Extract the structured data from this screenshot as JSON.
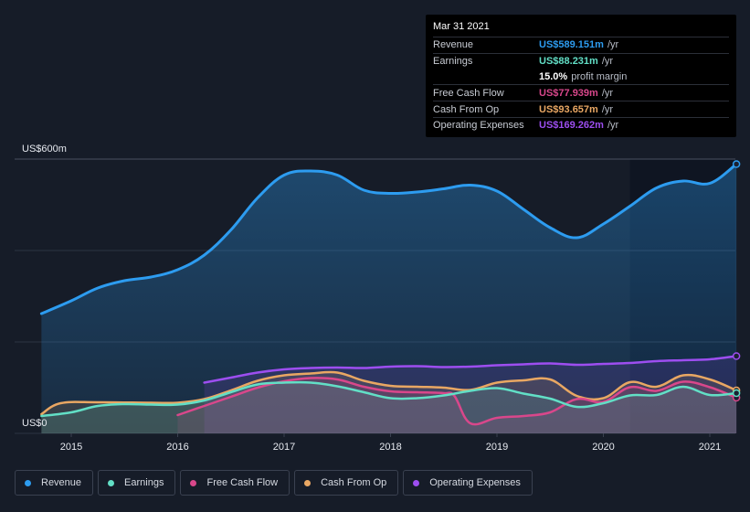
{
  "tooltip": {
    "date": "Mar 31 2021",
    "rows": [
      {
        "label": "Revenue",
        "value": "US$589.151m",
        "unit": "/yr",
        "color": "#2d9cf0"
      },
      {
        "label": "Earnings",
        "value": "US$88.231m",
        "unit": "/yr",
        "color": "#62dfc6"
      },
      {
        "label": "",
        "value": "15.0%",
        "unit": "profit margin",
        "color": "#ffffff"
      },
      {
        "label": "Free Cash Flow",
        "value": "US$77.939m",
        "unit": "/yr",
        "color": "#d9478b"
      },
      {
        "label": "Cash From Op",
        "value": "US$93.657m",
        "unit": "/yr",
        "color": "#e9a763"
      },
      {
        "label": "Operating Expenses",
        "value": "US$169.262m",
        "unit": "/yr",
        "color": "#9d4ef0"
      }
    ]
  },
  "legend": [
    {
      "label": "Revenue",
      "color": "#2d9cf0"
    },
    {
      "label": "Earnings",
      "color": "#62dfc6"
    },
    {
      "label": "Free Cash Flow",
      "color": "#d9478b"
    },
    {
      "label": "Cash From Op",
      "color": "#e9a763"
    },
    {
      "label": "Operating Expenses",
      "color": "#9d4ef0"
    }
  ],
  "chart_data": {
    "type": "area",
    "y_top_label": "US$600m",
    "y_bottom_label": "US$0",
    "ylim": [
      0,
      600
    ],
    "xlim": [
      2014.72,
      2021.25
    ],
    "x_ticks": [
      "2015",
      "2016",
      "2017",
      "2018",
      "2019",
      "2020",
      "2021"
    ],
    "x_tick_values": [
      2015,
      2016,
      2017,
      2018,
      2019,
      2020,
      2021
    ],
    "highlight_from": 2020.25,
    "grid": true,
    "series": [
      {
        "name": "Revenue",
        "color": "#2d9cf0",
        "points": [
          [
            2014.72,
            262
          ],
          [
            2015.0,
            290
          ],
          [
            2015.25,
            318
          ],
          [
            2015.5,
            334
          ],
          [
            2015.75,
            342
          ],
          [
            2016.0,
            358
          ],
          [
            2016.25,
            390
          ],
          [
            2016.5,
            445
          ],
          [
            2016.75,
            515
          ],
          [
            2017.0,
            565
          ],
          [
            2017.25,
            574
          ],
          [
            2017.5,
            565
          ],
          [
            2017.75,
            532
          ],
          [
            2018.0,
            525
          ],
          [
            2018.25,
            528
          ],
          [
            2018.5,
            535
          ],
          [
            2018.75,
            543
          ],
          [
            2019.0,
            530
          ],
          [
            2019.25,
            490
          ],
          [
            2019.5,
            450
          ],
          [
            2019.75,
            428
          ],
          [
            2020.0,
            458
          ],
          [
            2020.25,
            497
          ],
          [
            2020.5,
            537
          ],
          [
            2020.75,
            552
          ],
          [
            2021.0,
            547
          ],
          [
            2021.25,
            589
          ]
        ]
      },
      {
        "name": "Operating Expenses",
        "color": "#9d4ef0",
        "points": [
          [
            2016.25,
            111
          ],
          [
            2016.5,
            122
          ],
          [
            2016.75,
            133
          ],
          [
            2017.0,
            140
          ],
          [
            2017.25,
            143
          ],
          [
            2017.5,
            144
          ],
          [
            2017.75,
            143
          ],
          [
            2018.0,
            146
          ],
          [
            2018.25,
            147
          ],
          [
            2018.5,
            145
          ],
          [
            2018.75,
            146
          ],
          [
            2019.0,
            149
          ],
          [
            2019.25,
            151
          ],
          [
            2019.5,
            153
          ],
          [
            2019.75,
            150
          ],
          [
            2020.0,
            152
          ],
          [
            2020.25,
            154
          ],
          [
            2020.5,
            158
          ],
          [
            2020.75,
            160
          ],
          [
            2021.0,
            162
          ],
          [
            2021.25,
            169
          ]
        ]
      },
      {
        "name": "Cash From Op",
        "color": "#e9a763",
        "points": [
          [
            2014.72,
            42
          ],
          [
            2014.9,
            66
          ],
          [
            2015.25,
            68
          ],
          [
            2015.75,
            67
          ],
          [
            2016.0,
            67
          ],
          [
            2016.25,
            75
          ],
          [
            2016.5,
            94
          ],
          [
            2016.75,
            115
          ],
          [
            2017.0,
            127
          ],
          [
            2017.25,
            131
          ],
          [
            2017.5,
            133
          ],
          [
            2017.75,
            115
          ],
          [
            2018.0,
            104
          ],
          [
            2018.25,
            102
          ],
          [
            2018.5,
            100
          ],
          [
            2018.75,
            95
          ],
          [
            2019.0,
            111
          ],
          [
            2019.25,
            116
          ],
          [
            2019.5,
            118
          ],
          [
            2019.75,
            82
          ],
          [
            2020.0,
            77
          ],
          [
            2020.25,
            112
          ],
          [
            2020.5,
            102
          ],
          [
            2020.75,
            127
          ],
          [
            2021.0,
            118
          ],
          [
            2021.25,
            94
          ]
        ]
      },
      {
        "name": "Free Cash Flow",
        "color": "#d9478b",
        "points": [
          [
            2016.0,
            40
          ],
          [
            2016.25,
            60
          ],
          [
            2016.5,
            80
          ],
          [
            2016.75,
            100
          ],
          [
            2017.0,
            114
          ],
          [
            2017.25,
            121
          ],
          [
            2017.5,
            118
          ],
          [
            2017.75,
            102
          ],
          [
            2018.0,
            92
          ],
          [
            2018.25,
            90
          ],
          [
            2018.5,
            88
          ],
          [
            2018.6,
            82
          ],
          [
            2018.75,
            22
          ],
          [
            2019.0,
            34
          ],
          [
            2019.25,
            38
          ],
          [
            2019.5,
            46
          ],
          [
            2019.75,
            75
          ],
          [
            2020.0,
            69
          ],
          [
            2020.25,
            101
          ],
          [
            2020.5,
            93
          ],
          [
            2020.75,
            113
          ],
          [
            2021.0,
            101
          ],
          [
            2021.25,
            78
          ]
        ]
      },
      {
        "name": "Earnings",
        "color": "#62dfc6",
        "points": [
          [
            2014.72,
            38
          ],
          [
            2015.0,
            46
          ],
          [
            2015.25,
            60
          ],
          [
            2015.5,
            64
          ],
          [
            2015.75,
            63
          ],
          [
            2016.0,
            63
          ],
          [
            2016.25,
            72
          ],
          [
            2016.5,
            90
          ],
          [
            2016.75,
            107
          ],
          [
            2017.0,
            111
          ],
          [
            2017.25,
            111
          ],
          [
            2017.5,
            103
          ],
          [
            2017.75,
            90
          ],
          [
            2018.0,
            77
          ],
          [
            2018.25,
            77
          ],
          [
            2018.5,
            83
          ],
          [
            2018.75,
            93
          ],
          [
            2019.0,
            99
          ],
          [
            2019.25,
            87
          ],
          [
            2019.5,
            76
          ],
          [
            2019.75,
            58
          ],
          [
            2020.0,
            66
          ],
          [
            2020.25,
            83
          ],
          [
            2020.5,
            84
          ],
          [
            2020.75,
            102
          ],
          [
            2021.0,
            84
          ],
          [
            2021.25,
            88
          ]
        ]
      }
    ]
  }
}
